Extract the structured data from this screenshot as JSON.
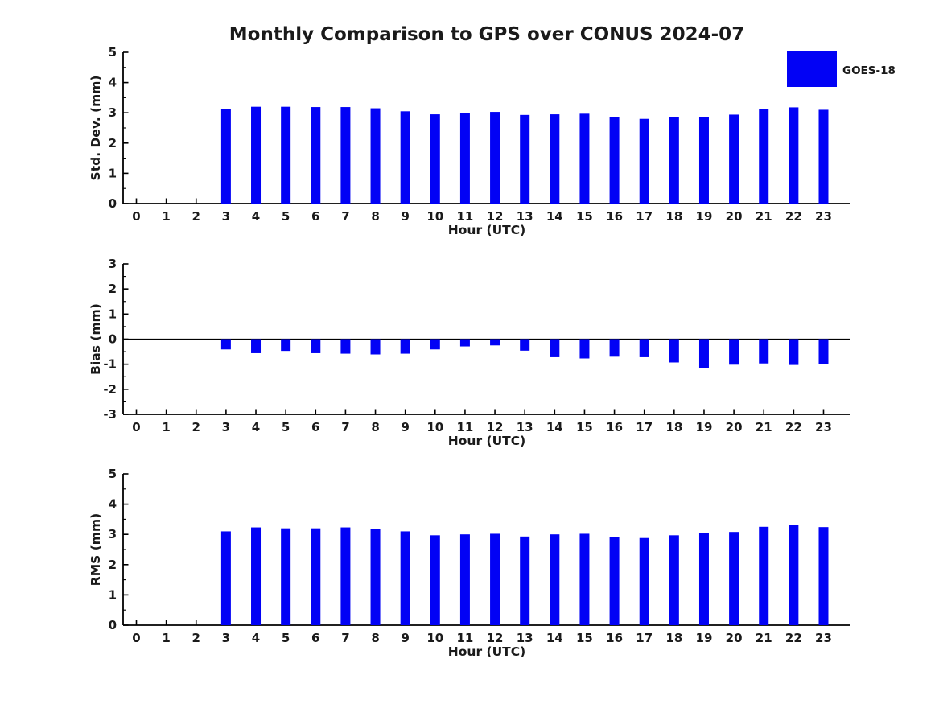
{
  "figure": {
    "title": "Monthly Comparison to GPS over CONUS 2024-07",
    "background": "#ffffff",
    "legend": {
      "label": "GOES-18",
      "color": "#0202f5"
    }
  },
  "chart_data": [
    {
      "id": "stddev",
      "type": "bar",
      "title": "Monthly Comparison to GPS over CONUS 2024-07",
      "xlabel": "Hour (UTC)",
      "ylabel": "Std. Dev. (mm)",
      "categories": [
        0,
        1,
        2,
        3,
        4,
        5,
        6,
        7,
        8,
        9,
        10,
        11,
        12,
        13,
        14,
        15,
        16,
        17,
        18,
        19,
        20,
        21,
        22,
        23
      ],
      "series": [
        {
          "name": "GOES-18",
          "color": "#0202f5",
          "values": [
            0,
            0,
            0,
            3.12,
            3.2,
            3.2,
            3.19,
            3.19,
            3.15,
            3.05,
            2.95,
            2.98,
            3.03,
            2.93,
            2.95,
            2.97,
            2.87,
            2.8,
            2.86,
            2.85,
            2.94,
            3.13,
            3.18,
            3.1
          ]
        }
      ],
      "ylim": [
        0,
        5
      ],
      "yticks": [
        0,
        1,
        2,
        3,
        4,
        5
      ],
      "minor_tick_step": 0.5,
      "grid": false,
      "zero_line": false,
      "legend_position": "upper right, outside plot"
    },
    {
      "id": "bias",
      "type": "bar",
      "title": "",
      "xlabel": "Hour (UTC)",
      "ylabel": "Bias (mm)",
      "categories": [
        0,
        1,
        2,
        3,
        4,
        5,
        6,
        7,
        8,
        9,
        10,
        11,
        12,
        13,
        14,
        15,
        16,
        17,
        18,
        19,
        20,
        21,
        22,
        23
      ],
      "series": [
        {
          "name": "GOES-18",
          "color": "#0202f5",
          "values": [
            0,
            0,
            0,
            -0.41,
            -0.56,
            -0.47,
            -0.56,
            -0.58,
            -0.61,
            -0.58,
            -0.41,
            -0.29,
            -0.25,
            -0.46,
            -0.72,
            -0.77,
            -0.7,
            -0.72,
            -0.93,
            -1.14,
            -1.02,
            -0.97,
            -1.03,
            -1.01
          ]
        }
      ],
      "ylim": [
        -3,
        3
      ],
      "yticks": [
        -3,
        -2,
        -1,
        0,
        1,
        2,
        3
      ],
      "minor_tick_step": 0.5,
      "grid": false,
      "zero_line": true,
      "legend_position": "none"
    },
    {
      "id": "rms",
      "type": "bar",
      "title": "",
      "xlabel": "Hour (UTC)",
      "ylabel": "RMS (mm)",
      "categories": [
        0,
        1,
        2,
        3,
        4,
        5,
        6,
        7,
        8,
        9,
        10,
        11,
        12,
        13,
        14,
        15,
        16,
        17,
        18,
        19,
        20,
        21,
        22,
        23
      ],
      "series": [
        {
          "name": "GOES-18",
          "color": "#0202f5",
          "values": [
            0,
            0,
            0,
            3.1,
            3.23,
            3.2,
            3.2,
            3.23,
            3.17,
            3.1,
            2.97,
            3.0,
            3.02,
            2.93,
            3.0,
            3.02,
            2.9,
            2.88,
            2.97,
            3.05,
            3.08,
            3.25,
            3.32,
            3.24
          ]
        }
      ],
      "ylim": [
        0,
        5
      ],
      "yticks": [
        0,
        1,
        2,
        3,
        4,
        5
      ],
      "minor_tick_step": 0.5,
      "grid": false,
      "zero_line": false,
      "legend_position": "none"
    }
  ]
}
